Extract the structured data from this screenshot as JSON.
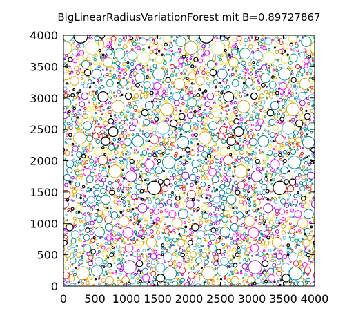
{
  "chart_data": {
    "type": "scatter",
    "title": "BigLinearRadiusVariationForest mit B=0.89727867",
    "xlabel": "",
    "ylabel": "",
    "xlim": [
      0,
      4000
    ],
    "ylim": [
      0,
      4000
    ],
    "x_ticks": [
      "0",
      "500",
      "1000",
      "1500",
      "2000",
      "2500",
      "3000",
      "3500",
      "4000"
    ],
    "y_ticks": [
      "0",
      "500",
      "1000",
      "1500",
      "2000",
      "2500",
      "3000",
      "3500",
      "4000"
    ],
    "grid": false,
    "legend": "none",
    "marker": "open-circle",
    "radius_range": [
      10,
      110
    ],
    "tile_width": 2000,
    "palette": [
      "#000000",
      "#9400d3",
      "#009e73",
      "#56b4e9",
      "#e69f00",
      "#f0e442",
      "#0072b2",
      "#e51e10",
      "#c8a000",
      "#ff00ff",
      "#008080"
    ]
  }
}
